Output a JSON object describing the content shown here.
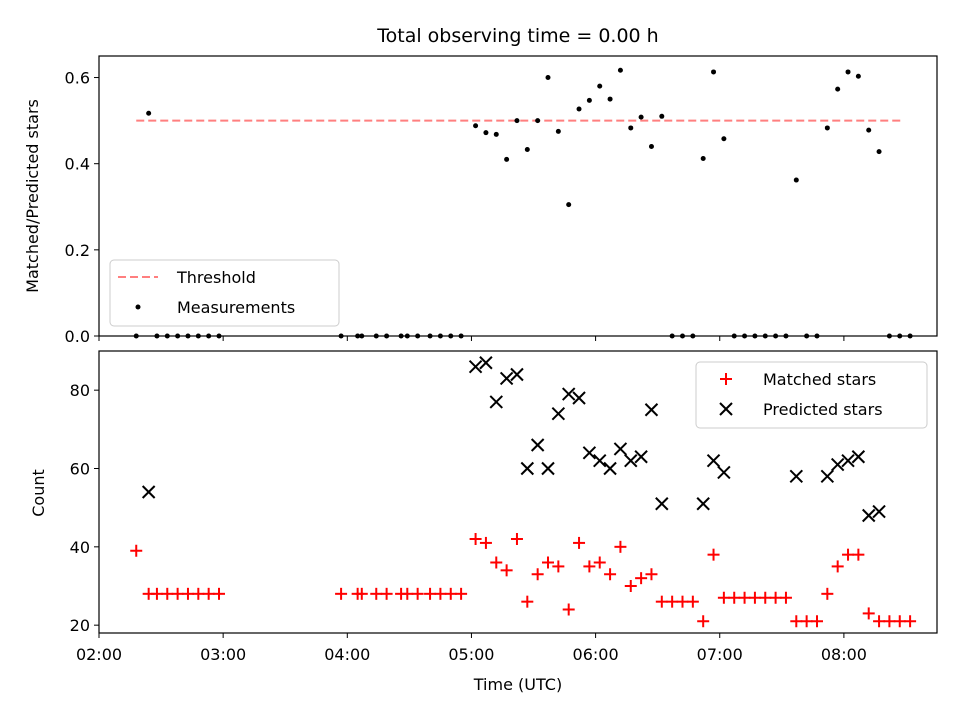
{
  "chart_data": [
    {
      "type": "scatter",
      "title": "Total observing time = 0.00 h",
      "xlabel": "",
      "ylabel": "Matched/Predicted stars",
      "ylim": [
        0,
        0.65
      ],
      "yticks": [
        "0.0",
        "0.2",
        "0.4",
        "0.6"
      ],
      "legend_position": "lower-left",
      "threshold": {
        "name": "Threshold",
        "value": 0.5,
        "x_start": "02:18",
        "x_end": "08:28",
        "color": "#ff7f7f"
      },
      "measurements": {
        "name": "Measurements",
        "color": "#000000",
        "points": [
          [
            "02:18",
            0
          ],
          [
            "02:24",
            0.517
          ],
          [
            "02:28",
            0
          ],
          [
            "02:33",
            0
          ],
          [
            "02:38",
            0
          ],
          [
            "02:43",
            0
          ],
          [
            "02:48",
            0
          ],
          [
            "02:53",
            0
          ],
          [
            "02:58",
            0
          ],
          [
            "03:57",
            0
          ],
          [
            "04:05",
            0
          ],
          [
            "04:07",
            0
          ],
          [
            "04:14",
            0
          ],
          [
            "04:19",
            0
          ],
          [
            "04:26",
            0
          ],
          [
            "04:29",
            0
          ],
          [
            "04:34",
            0
          ],
          [
            "04:40",
            0
          ],
          [
            "04:45",
            0
          ],
          [
            "04:50",
            0
          ],
          [
            "04:55",
            0
          ],
          [
            "05:02",
            0.488
          ],
          [
            "05:07",
            0.472
          ],
          [
            "05:12",
            0.468
          ],
          [
            "05:17",
            0.41
          ],
          [
            "05:22",
            0.5
          ],
          [
            "05:27",
            0.433
          ],
          [
            "05:32",
            0.5
          ],
          [
            "05:37",
            0.6
          ],
          [
            "05:42",
            0.475
          ],
          [
            "05:47",
            0.305
          ],
          [
            "05:52",
            0.527
          ],
          [
            "05:57",
            0.547
          ],
          [
            "06:02",
            0.58
          ],
          [
            "06:07",
            0.55
          ],
          [
            "06:12",
            0.617
          ],
          [
            "06:17",
            0.483
          ],
          [
            "06:22",
            0.508
          ],
          [
            "06:27",
            0.44
          ],
          [
            "06:32",
            0.51
          ],
          [
            "06:37",
            0
          ],
          [
            "06:42",
            0
          ],
          [
            "06:47",
            0
          ],
          [
            "06:52",
            0.412
          ],
          [
            "06:57",
            0.613
          ],
          [
            "07:02",
            0.458
          ],
          [
            "07:07",
            0
          ],
          [
            "07:12",
            0
          ],
          [
            "07:17",
            0
          ],
          [
            "07:22",
            0
          ],
          [
            "07:27",
            0
          ],
          [
            "07:32",
            0
          ],
          [
            "07:37",
            0.362
          ],
          [
            "07:42",
            0
          ],
          [
            "07:47",
            0
          ],
          [
            "07:52",
            0.483
          ],
          [
            "07:57",
            0.573
          ],
          [
            "08:02",
            0.613
          ],
          [
            "08:07",
            0.603
          ],
          [
            "08:12",
            0.478
          ],
          [
            "08:17",
            0.428
          ],
          [
            "08:22",
            0
          ],
          [
            "08:27",
            0
          ],
          [
            "08:32",
            0
          ]
        ]
      }
    },
    {
      "type": "scatter",
      "xlabel": "Time (UTC)",
      "ylabel": "Count",
      "ylim": [
        18,
        90
      ],
      "xlim": [
        "02:00",
        "08:45"
      ],
      "yticks": [
        "20",
        "40",
        "60",
        "80"
      ],
      "xticks": [
        "02:00",
        "03:00",
        "04:00",
        "05:00",
        "06:00",
        "07:00",
        "08:00"
      ],
      "legend_position": "upper-right",
      "series": [
        {
          "name": "Matched stars",
          "color": "#ff0000",
          "points": [
            [
              "02:18",
              39
            ],
            [
              "02:24",
              28
            ],
            [
              "02:28",
              28
            ],
            [
              "02:33",
              28
            ],
            [
              "02:38",
              28
            ],
            [
              "02:43",
              28
            ],
            [
              "02:48",
              28
            ],
            [
              "02:53",
              28
            ],
            [
              "02:58",
              28
            ],
            [
              "03:57",
              28
            ],
            [
              "04:05",
              28
            ],
            [
              "04:07",
              28
            ],
            [
              "04:14",
              28
            ],
            [
              "04:19",
              28
            ],
            [
              "04:26",
              28
            ],
            [
              "04:29",
              28
            ],
            [
              "04:34",
              28
            ],
            [
              "04:40",
              28
            ],
            [
              "04:45",
              28
            ],
            [
              "04:50",
              28
            ],
            [
              "04:55",
              28
            ],
            [
              "05:02",
              42
            ],
            [
              "05:07",
              41
            ],
            [
              "05:12",
              36
            ],
            [
              "05:17",
              34
            ],
            [
              "05:22",
              42
            ],
            [
              "05:27",
              26
            ],
            [
              "05:32",
              33
            ],
            [
              "05:37",
              36
            ],
            [
              "05:42",
              35
            ],
            [
              "05:47",
              24
            ],
            [
              "05:52",
              41
            ],
            [
              "05:57",
              35
            ],
            [
              "06:02",
              36
            ],
            [
              "06:07",
              33
            ],
            [
              "06:12",
              40
            ],
            [
              "06:17",
              30
            ],
            [
              "06:22",
              32
            ],
            [
              "06:27",
              33
            ],
            [
              "06:32",
              26
            ],
            [
              "06:37",
              26
            ],
            [
              "06:42",
              26
            ],
            [
              "06:47",
              26
            ],
            [
              "06:52",
              21
            ],
            [
              "06:57",
              38
            ],
            [
              "07:02",
              27
            ],
            [
              "07:07",
              27
            ],
            [
              "07:12",
              27
            ],
            [
              "07:17",
              27
            ],
            [
              "07:22",
              27
            ],
            [
              "07:27",
              27
            ],
            [
              "07:32",
              27
            ],
            [
              "07:37",
              21
            ],
            [
              "07:42",
              21
            ],
            [
              "07:47",
              21
            ],
            [
              "07:52",
              28
            ],
            [
              "07:57",
              35
            ],
            [
              "08:02",
              38
            ],
            [
              "08:07",
              38
            ],
            [
              "08:12",
              23
            ],
            [
              "08:17",
              21
            ],
            [
              "08:22",
              21
            ],
            [
              "08:27",
              21
            ],
            [
              "08:32",
              21
            ]
          ]
        },
        {
          "name": "Predicted stars",
          "color": "#000000",
          "points": [
            [
              "02:24",
              54
            ],
            [
              "05:02",
              86
            ],
            [
              "05:07",
              87
            ],
            [
              "05:12",
              77
            ],
            [
              "05:17",
              83
            ],
            [
              "05:22",
              84
            ],
            [
              "05:27",
              60
            ],
            [
              "05:32",
              66
            ],
            [
              "05:37",
              60
            ],
            [
              "05:42",
              74
            ],
            [
              "05:47",
              79
            ],
            [
              "05:52",
              78
            ],
            [
              "05:57",
              64
            ],
            [
              "06:02",
              62
            ],
            [
              "06:07",
              60
            ],
            [
              "06:12",
              65
            ],
            [
              "06:17",
              62
            ],
            [
              "06:22",
              63
            ],
            [
              "06:27",
              75
            ],
            [
              "06:32",
              51
            ],
            [
              "06:52",
              51
            ],
            [
              "06:57",
              62
            ],
            [
              "07:02",
              59
            ],
            [
              "07:37",
              58
            ],
            [
              "07:52",
              58
            ],
            [
              "07:57",
              61
            ],
            [
              "08:02",
              62
            ],
            [
              "08:07",
              63
            ],
            [
              "08:12",
              48
            ],
            [
              "08:17",
              49
            ]
          ]
        }
      ]
    }
  ]
}
